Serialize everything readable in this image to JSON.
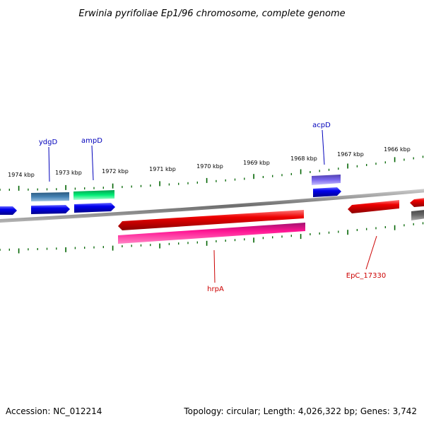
{
  "title": "Erwinia pyrifoliae Ep1/96 chromosome, complete genome",
  "footer": {
    "accession": "Accession: NC_012214",
    "summary": "Topology: circular; Length: 4,026,322 bp; Genes: 3,742"
  },
  "ticks": [
    {
      "label": "1974 kbp"
    },
    {
      "label": "1973 kbp"
    },
    {
      "label": "1972 kbp"
    },
    {
      "label": "1971 kbp"
    },
    {
      "label": "1970 kbp"
    },
    {
      "label": "1969 kbp"
    },
    {
      "label": "1968 kbp"
    },
    {
      "label": "1967 kbp"
    },
    {
      "label": "1966 kbp"
    }
  ],
  "gene_labels": [
    {
      "name": "ydgD",
      "strand": "forward"
    },
    {
      "name": "ampD",
      "strand": "forward"
    },
    {
      "name": "acpD",
      "strand": "forward"
    },
    {
      "name": "hrpA",
      "strand": "reverse"
    },
    {
      "name": "EpC_17330",
      "strand": "reverse"
    }
  ],
  "colors": {
    "forward_cds": "#0000ee",
    "reverse_cds": "#ee0000",
    "pink_cds": "#ee1493",
    "steelblue_cds": "#4682b4",
    "green_cds": "#00ee76",
    "purple_cds": "#7b68ee",
    "backbone": "#808080",
    "tick": "#006400",
    "forward_label": "#0000bb",
    "reverse_label": "#cc0000"
  }
}
